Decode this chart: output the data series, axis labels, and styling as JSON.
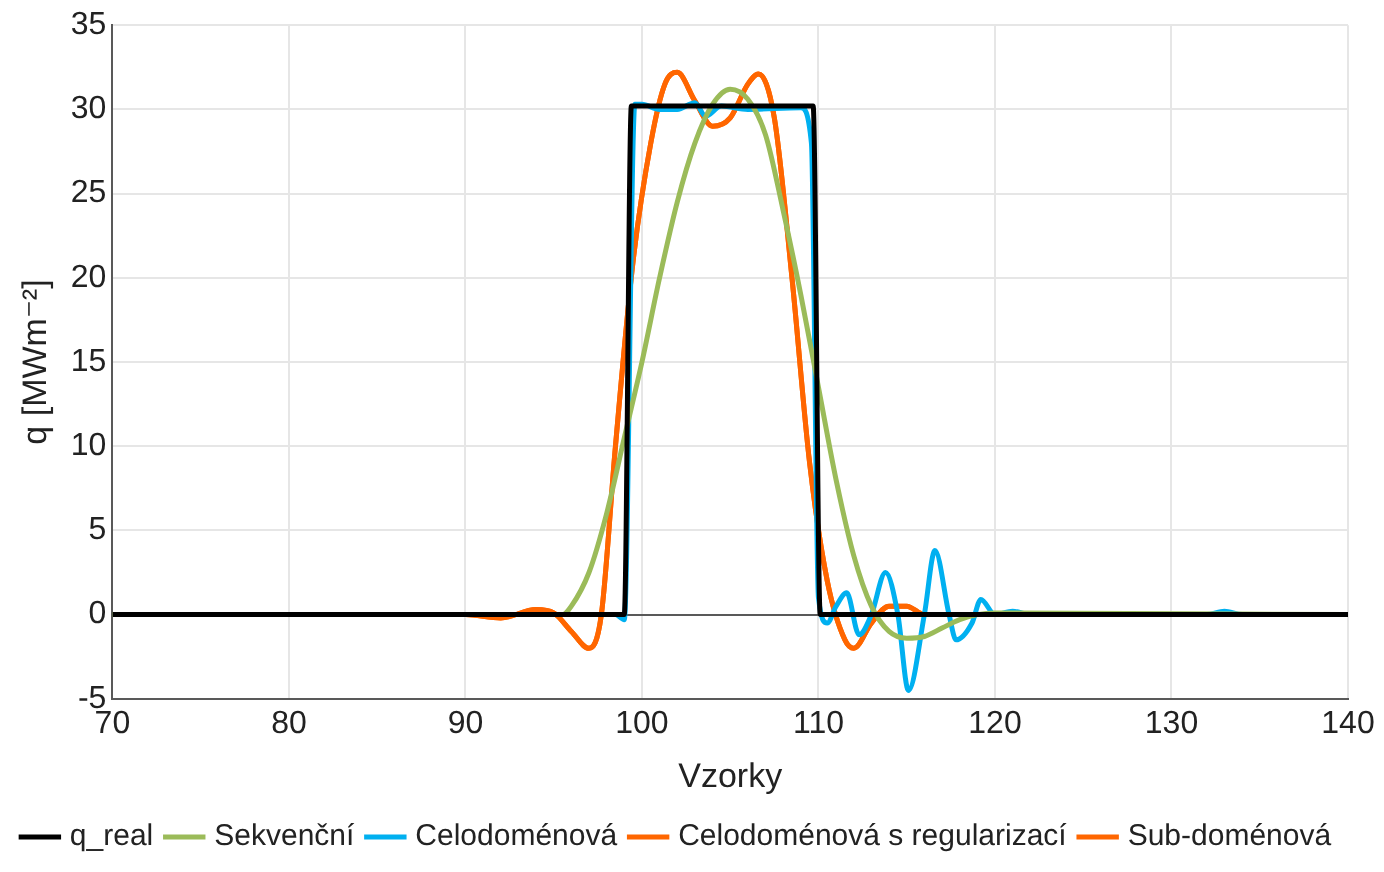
{
  "chart_data": {
    "type": "line",
    "xlabel": "Vzorky",
    "ylabel": "q [MWm⁻²]",
    "xlim": [
      70,
      140
    ],
    "xticks": [
      70,
      80,
      90,
      100,
      110,
      120,
      130,
      140
    ],
    "ylim": [
      -5,
      35
    ],
    "yticks": [
      -5,
      0,
      5,
      10,
      15,
      20,
      25,
      30,
      35
    ],
    "grid": true,
    "legend": "bottom",
    "marker": "none",
    "line_style": "solid",
    "series": [
      {
        "name": "q_real",
        "color": "#000000",
        "x": [
          70,
          99,
          99.4,
          109.7,
          110.1,
          140
        ],
        "values": [
          0,
          0,
          30.2,
          30.2,
          0,
          0
        ]
      },
      {
        "name": "Sekvenční",
        "color": "#9bbb59",
        "x": [
          70,
          95.5,
          96,
          97,
          98,
          99,
          100,
          101,
          102,
          103,
          104,
          105,
          106,
          107,
          108,
          109,
          110,
          111,
          112,
          113,
          114,
          115,
          116,
          117,
          118,
          119,
          120,
          140
        ],
        "values": [
          0,
          0,
          0.5,
          2.5,
          6,
          10.5,
          15,
          20,
          24.5,
          28,
          30.3,
          31.2,
          30.6,
          28.5,
          24,
          19,
          13.5,
          8,
          3.5,
          0.5,
          -1,
          -1.4,
          -1.3,
          -0.8,
          -0.3,
          0,
          0.1,
          0
        ]
      },
      {
        "name": "Celodoménová",
        "color": "#00b0f0",
        "x": [
          70,
          98.5,
          99,
          99.6,
          100,
          101,
          102,
          103,
          103.6,
          104.5,
          106,
          109,
          109.6,
          110,
          110.5,
          111,
          111.6,
          112.3,
          113,
          113.8,
          114.5,
          115.1,
          116,
          116.6,
          117.4,
          117.8,
          118.7,
          119.2,
          120,
          121,
          122,
          132,
          133,
          134,
          140
        ],
        "values": [
          0,
          0,
          -0.3,
          30.3,
          30.3,
          30,
          30,
          30.4,
          29.6,
          30.2,
          30,
          30.1,
          28,
          1,
          -0.5,
          0.5,
          1.3,
          -1.2,
          0,
          2.5,
          0,
          -4.5,
          0,
          3.8,
          0,
          -1.5,
          -0.5,
          0.9,
          0,
          0.2,
          0,
          0,
          0.2,
          0,
          0
        ]
      },
      {
        "name": "Celodoménová s regularizací",
        "color": "#ff6600",
        "x": [
          70,
          90,
          92,
          94,
          95,
          96,
          97,
          97.7,
          98.5,
          99.5,
          100.5,
          101.3,
          102,
          103,
          104,
          105,
          106,
          106.6,
          107.5,
          108.5,
          109.5,
          110.5,
          111.5,
          112,
          113,
          114,
          115,
          116,
          118,
          140
        ],
        "values": [
          0,
          0,
          -0.2,
          0.3,
          0.1,
          -1,
          -2,
          0,
          10,
          21,
          28,
          31.5,
          32.2,
          30.5,
          29,
          29.5,
          31.5,
          32.1,
          29.5,
          20,
          9,
          2,
          -1.5,
          -2,
          -0.5,
          0.5,
          0.5,
          0,
          0,
          0
        ]
      },
      {
        "name": "Sub-doménová",
        "color": "#ff6600",
        "x": [
          70,
          90,
          92,
          94,
          95,
          96,
          97,
          97.7,
          98.5,
          99.5,
          100.5,
          101.3,
          102,
          103,
          104,
          105,
          106,
          106.6,
          107.5,
          108.5,
          109.5,
          110.5,
          111.5,
          112,
          113,
          114,
          115,
          116,
          118,
          140
        ],
        "values": [
          0,
          0,
          -0.2,
          0.3,
          0.1,
          -1,
          -2,
          0,
          10,
          21,
          28,
          31.5,
          32.2,
          30.5,
          29,
          29.5,
          31.5,
          32.1,
          29.5,
          20,
          9,
          2,
          -1.5,
          -2,
          -0.5,
          0.5,
          0.5,
          0,
          0,
          0
        ]
      }
    ]
  }
}
